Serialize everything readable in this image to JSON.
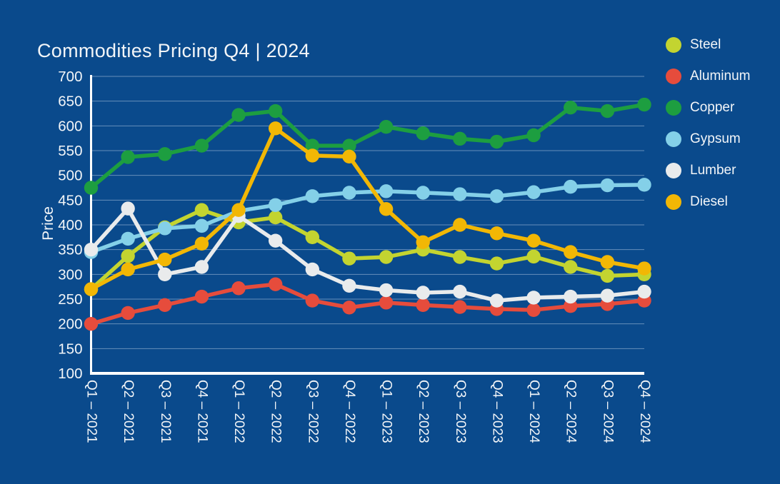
{
  "title": "Commodities Pricing Q4 | 2024",
  "colors": {
    "background": "#0a4a8c",
    "text": "#f2f5f8",
    "axis": "#ffffff",
    "grid": "rgba(215,228,242,0.45)"
  },
  "chart_data": {
    "type": "line",
    "title": "Commodities Pricing Q4 | 2024",
    "xlabel": "",
    "ylabel": "Price",
    "ylim": [
      100,
      700
    ],
    "y_tick_step": 50,
    "grid": true,
    "legend_position": "right",
    "marker": "circle",
    "categories": [
      "Q1 – 2021",
      "Q2 – 2021",
      "Q3 – 2021",
      "Q4 – 2021",
      "Q1 – 2022",
      "Q2 – 2022",
      "Q3 – 2022",
      "Q4 – 2022",
      "Q1 – 2023",
      "Q2 – 2023",
      "Q3 – 2023",
      "Q4 – 2023",
      "Q1 – 2024",
      "Q2 – 2024",
      "Q3 – 2024",
      "Q4 – 2024"
    ],
    "series": [
      {
        "name": "Steel",
        "color": "#c3d430",
        "values": [
          270,
          337,
          395,
          430,
          405,
          415,
          375,
          332,
          335,
          350,
          335,
          322,
          336,
          315,
          297,
          300
        ]
      },
      {
        "name": "Aluminum",
        "color": "#e64c3c",
        "values": [
          200,
          222,
          238,
          255,
          272,
          280,
          247,
          233,
          243,
          238,
          234,
          230,
          228,
          236,
          240,
          247
        ]
      },
      {
        "name": "Copper",
        "color": "#1d9e40",
        "values": [
          475,
          537,
          543,
          560,
          622,
          630,
          560,
          560,
          598,
          585,
          574,
          568,
          581,
          637,
          630,
          643
        ]
      },
      {
        "name": "Gypsum",
        "color": "#84d0e8",
        "values": [
          345,
          372,
          393,
          398,
          428,
          440,
          458,
          465,
          468,
          465,
          462,
          458,
          466,
          477,
          480,
          481
        ]
      },
      {
        "name": "Lumber",
        "color": "#e9ebec",
        "values": [
          350,
          433,
          300,
          315,
          418,
          368,
          310,
          277,
          268,
          263,
          265,
          247,
          253,
          255,
          257,
          265
        ]
      },
      {
        "name": "Diesel",
        "color": "#f2b705",
        "values": [
          270,
          310,
          330,
          362,
          430,
          595,
          540,
          538,
          432,
          365,
          400,
          383,
          368,
          345,
          325,
          312
        ]
      }
    ]
  }
}
